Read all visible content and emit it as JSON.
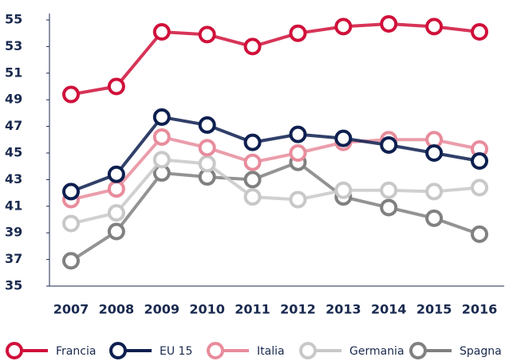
{
  "chart_data": {
    "type": "line",
    "categories": [
      "2007",
      "2008",
      "2009",
      "2010",
      "2011",
      "2012",
      "2013",
      "2014",
      "2015",
      "2016"
    ],
    "series": [
      {
        "name": "Francia",
        "color": "#d0103a",
        "values": [
          49.4,
          50.0,
          54.1,
          53.9,
          53.0,
          54.0,
          54.5,
          54.7,
          54.5,
          54.1
        ]
      },
      {
        "name": "EU 15",
        "color": "#0d1f4f",
        "values": [
          42.1,
          43.4,
          47.7,
          47.1,
          45.8,
          46.4,
          46.1,
          45.6,
          45.0,
          44.4
        ]
      },
      {
        "name": "Italia",
        "color": "#e88c9c",
        "values": [
          41.5,
          42.3,
          46.2,
          45.4,
          44.3,
          45.0,
          45.8,
          46.0,
          46.0,
          45.3
        ]
      },
      {
        "name": "Germania",
        "color": "#c8c8c8",
        "values": [
          39.7,
          40.5,
          44.5,
          44.2,
          41.7,
          41.5,
          42.2,
          42.2,
          42.1,
          42.4
        ]
      },
      {
        "name": "Spagna",
        "color": "#808080",
        "values": [
          36.9,
          39.1,
          43.5,
          43.2,
          43.0,
          44.3,
          41.7,
          40.9,
          40.1,
          38.9
        ]
      }
    ],
    "ylim": [
      35,
      55
    ],
    "yticks": [
      35,
      37,
      39,
      41,
      43,
      45,
      47,
      49,
      51,
      53,
      55
    ]
  }
}
